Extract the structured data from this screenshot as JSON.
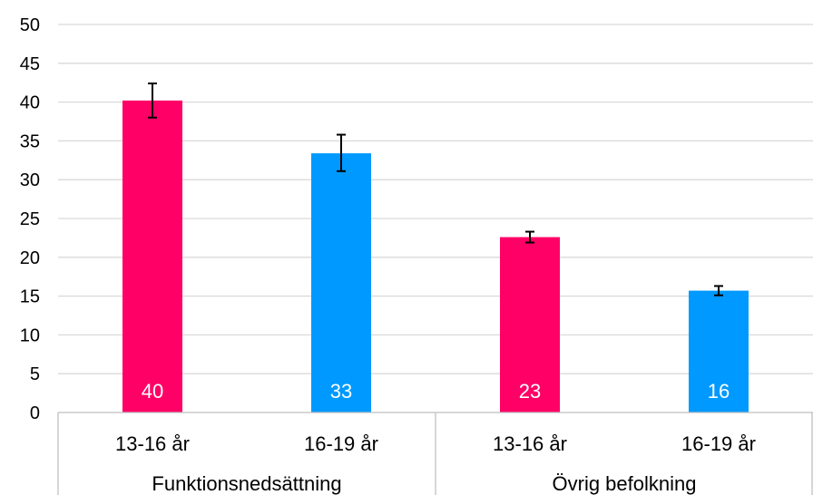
{
  "chart_data": {
    "type": "bar",
    "ylim": [
      0,
      50
    ],
    "yticks": [
      0,
      5,
      10,
      15,
      20,
      25,
      30,
      35,
      40,
      45,
      50
    ],
    "grid": true,
    "groups": [
      {
        "name": "Funktionsnedsättning",
        "bars": [
          {
            "label": "13-16 år",
            "value": 40.2,
            "err_low": 38.0,
            "err_high": 42.4,
            "data_label": "40",
            "color": "#ff0066"
          },
          {
            "label": "16-19 år",
            "value": 33.4,
            "err_low": 31.1,
            "err_high": 35.8,
            "data_label": "33",
            "color": "#0099ff"
          }
        ]
      },
      {
        "name": "Övrig befolkning",
        "bars": [
          {
            "label": "13-16 år",
            "value": 22.6,
            "err_low": 21.9,
            "err_high": 23.3,
            "data_label": "23",
            "color": "#ff0066"
          },
          {
            "label": "16-19 år",
            "value": 15.7,
            "err_low": 15.1,
            "err_high": 16.3,
            "data_label": "16",
            "color": "#0099ff"
          }
        ]
      }
    ]
  }
}
